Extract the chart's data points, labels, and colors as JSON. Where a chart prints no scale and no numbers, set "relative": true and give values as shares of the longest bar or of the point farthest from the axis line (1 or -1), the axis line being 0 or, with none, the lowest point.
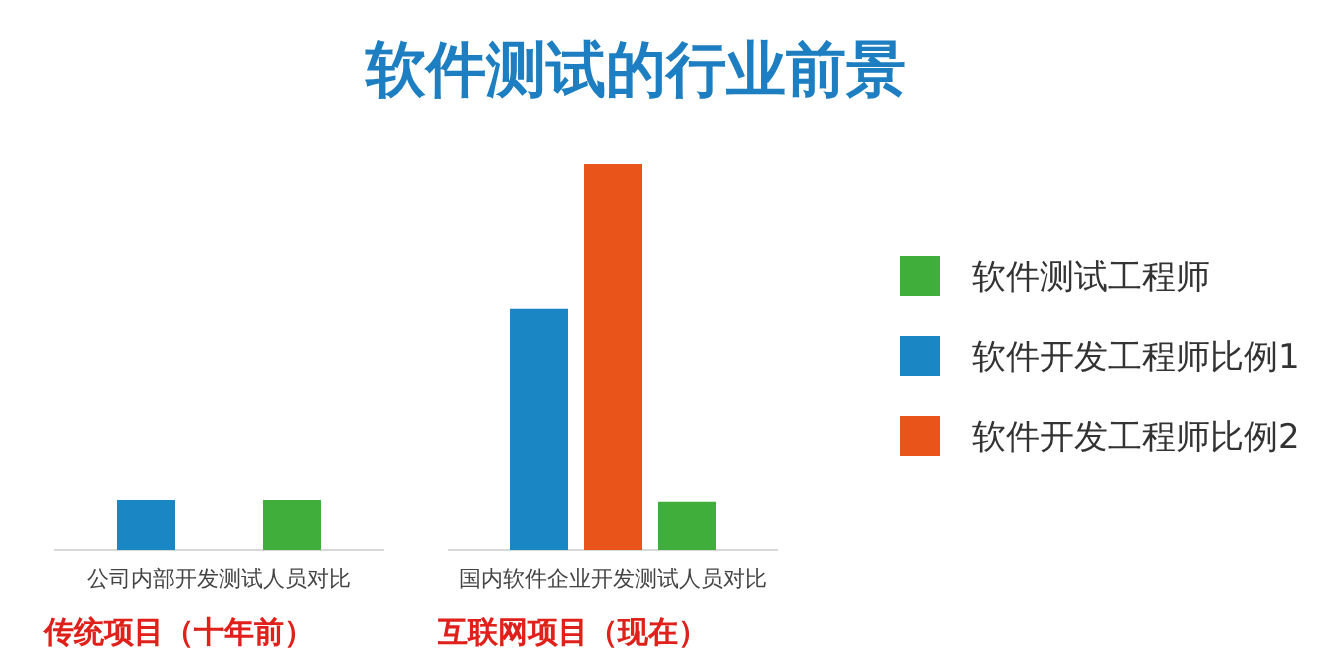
{
  "chart_data": [
    {
      "type": "bar",
      "xlabel": "公司内部开发测试人员对比",
      "relative": true,
      "stacked": true,
      "categories": [
        null,
        null
      ],
      "series": [
        {
          "color": "#1a86c4",
          "values": [
            1,
            null
          ]
        },
        {
          "color": "#3fae3a",
          "values": [
            null,
            1
          ]
        }
      ],
      "annotations": [
        "传统项目（十年前）"
      ]
    },
    {
      "type": "bar",
      "title": "软件测试的行业前景",
      "xlabel": "国内软件企业开发测试人员对比",
      "relative": true,
      "stacked": true,
      "legend": "right",
      "categories": [
        null,
        null,
        null
      ],
      "series": [
        {
          "name": "软件开发工程师比例1",
          "color": "#1a86c4",
          "values": [
            0.625,
            null,
            null
          ]
        },
        {
          "name": "软件开发工程师比例2",
          "color": "#e8541a",
          "values": [
            null,
            1,
            null
          ]
        },
        {
          "name": "软件测试工程师",
          "color": "#3fae3a",
          "values": [
            null,
            null,
            0.125
          ]
        }
      ],
      "annotations": [
        "互联网项目（现在）"
      ]
    }
  ]
}
